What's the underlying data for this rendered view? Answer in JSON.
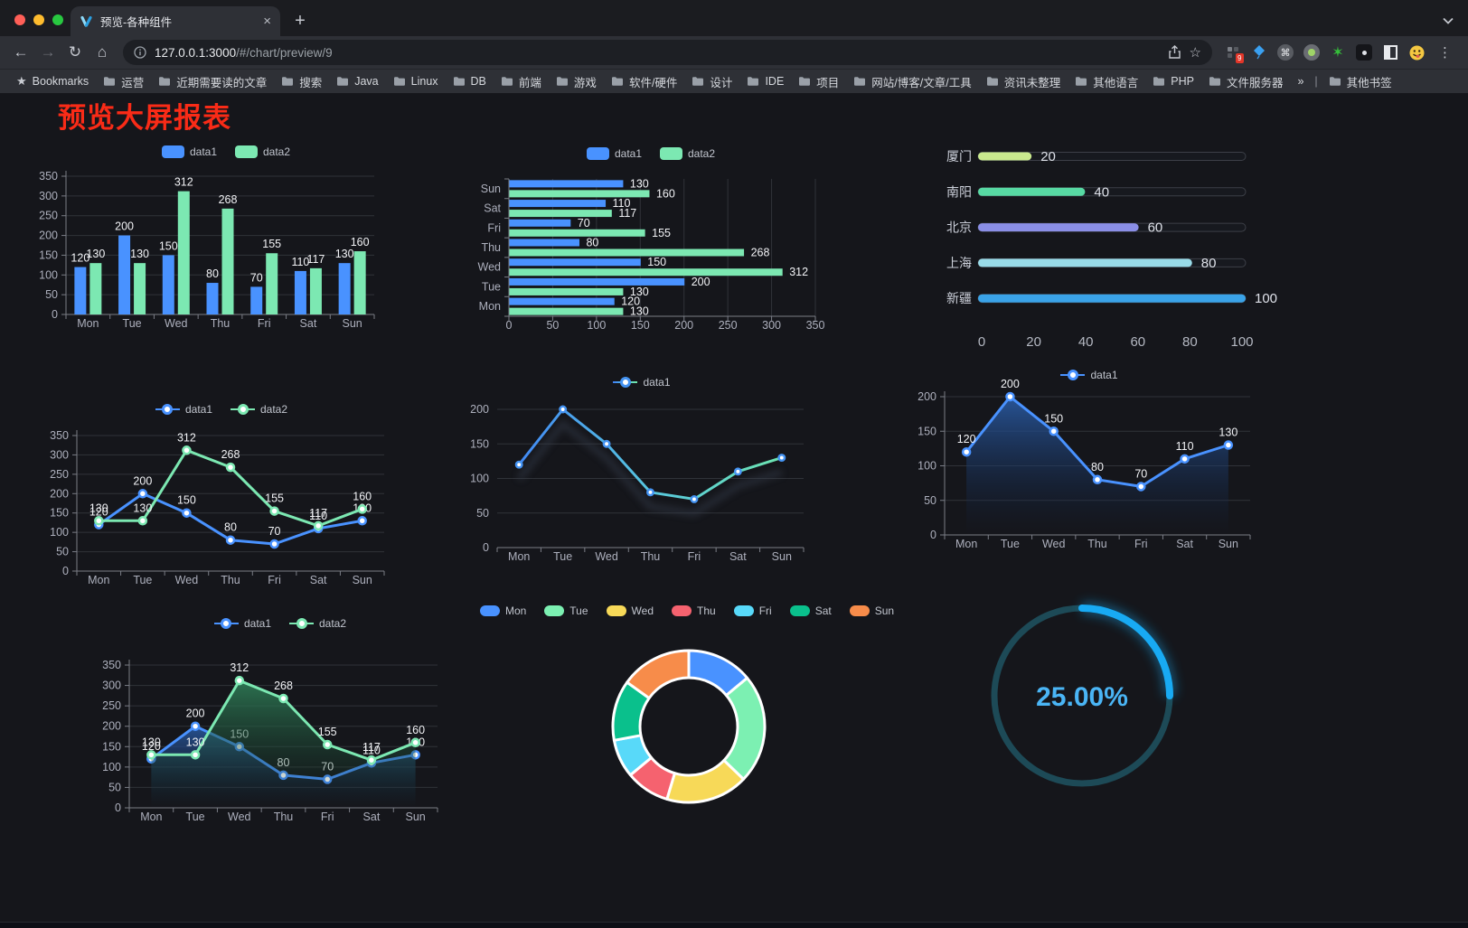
{
  "browser": {
    "traffic_lights": [
      "#ff5f57",
      "#febc2e",
      "#28c840"
    ],
    "tab_title": "预览-各种组件",
    "tab_close": "×",
    "new_tab_button": "+",
    "url_host": "127.0.0.1:3000",
    "url_path": "/#/chart/preview/9",
    "extension_badge": "9",
    "bookmarks_label": "Bookmarks",
    "bookmarks": [
      "运营",
      "近期需要读的文章",
      "搜索",
      "Java",
      "Linux",
      "DB",
      "前端",
      "游戏",
      "软件/硬件",
      "设计",
      "IDE",
      "项目",
      "网站/博客/文章/工具",
      "资讯未整理",
      "其他语言",
      "PHP",
      "文件服务器"
    ],
    "bookmarks_overflow": "»",
    "other_bookmarks": "其他书签"
  },
  "page": {
    "title": "预览大屏报表",
    "title_color": "#f92b17"
  },
  "chart_data": [
    {
      "id": "grouped-bar",
      "type": "bar",
      "categories": [
        "Mon",
        "Tue",
        "Wed",
        "Thu",
        "Fri",
        "Sat",
        "Sun"
      ],
      "series": [
        {
          "name": "data1",
          "color": "#4992ff",
          "values": [
            120,
            200,
            150,
            80,
            70,
            110,
            130
          ]
        },
        {
          "name": "data2",
          "color": "#7ce8b2",
          "values": [
            130,
            130,
            312,
            268,
            155,
            117,
            160
          ]
        }
      ],
      "ylim": [
        0,
        350
      ],
      "ystep": 50,
      "grid": true,
      "legend_position": "top"
    },
    {
      "id": "horizontal-bar",
      "type": "bar-horizontal",
      "categories": [
        "Mon",
        "Tue",
        "Wed",
        "Thu",
        "Fri",
        "Sat",
        "Sun"
      ],
      "series": [
        {
          "name": "data1",
          "color": "#4992ff",
          "values": [
            120,
            200,
            150,
            80,
            70,
            110,
            130
          ]
        },
        {
          "name": "data2",
          "color": "#7ce8b2",
          "values": [
            130,
            130,
            312,
            268,
            155,
            117,
            160
          ]
        }
      ],
      "xlim": [
        0,
        350
      ],
      "xstep": 50,
      "grid": true,
      "legend_position": "top"
    },
    {
      "id": "city-progress",
      "type": "bar-horizontal",
      "variant": "progress",
      "categories": [
        "厦门",
        "南阳",
        "北京",
        "上海",
        "新疆"
      ],
      "values": [
        20,
        40,
        60,
        80,
        100
      ],
      "colors": [
        "#c9e98e",
        "#57d9a3",
        "#8a8ee6",
        "#99dbe8",
        "#3aa3e8"
      ],
      "xlim": [
        0,
        100
      ],
      "xticks": [
        0,
        20,
        40,
        60,
        80,
        100
      ]
    },
    {
      "id": "dual-line",
      "type": "line",
      "categories": [
        "Mon",
        "Tue",
        "Wed",
        "Thu",
        "Fri",
        "Sat",
        "Sun"
      ],
      "series": [
        {
          "name": "data1",
          "color": "#4992ff",
          "values": [
            120,
            200,
            150,
            80,
            70,
            110,
            130
          ]
        },
        {
          "name": "data2",
          "color": "#7ce8b2",
          "values": [
            130,
            130,
            312,
            268,
            155,
            117,
            160
          ]
        }
      ],
      "ylim": [
        0,
        350
      ],
      "ystep": 50,
      "show_labels": true,
      "legend_position": "top"
    },
    {
      "id": "gradient-line",
      "type": "line",
      "categories": [
        "Mon",
        "Tue",
        "Wed",
        "Thu",
        "Fri",
        "Sat",
        "Sun"
      ],
      "series": [
        {
          "name": "data1",
          "color": "#4493f2",
          "gradient": [
            "#3e7ef7",
            "#57c7df",
            "#70e9a8"
          ],
          "values": [
            120,
            200,
            150,
            80,
            70,
            110,
            130
          ]
        }
      ],
      "ylim": [
        0,
        200
      ],
      "ystep": 50,
      "show_labels": false,
      "shadow": true,
      "legend_position": "top"
    },
    {
      "id": "area-line",
      "type": "area",
      "categories": [
        "Mon",
        "Tue",
        "Wed",
        "Thu",
        "Fri",
        "Sat",
        "Sun"
      ],
      "series": [
        {
          "name": "data1",
          "color": "#4992ff",
          "area": [
            "rgba(41,88,158,0.95)",
            "rgba(16,34,66,0)"
          ],
          "values": [
            120,
            200,
            150,
            80,
            70,
            110,
            130
          ]
        }
      ],
      "ylim": [
        0,
        200
      ],
      "ystep": 50,
      "show_labels": true,
      "legend_position": "top"
    },
    {
      "id": "dual-area",
      "type": "area",
      "categories": [
        "Mon",
        "Tue",
        "Wed",
        "Thu",
        "Fri",
        "Sat",
        "Sun"
      ],
      "series": [
        {
          "name": "data1",
          "color": "#4992ff",
          "area": [
            "rgba(41,88,158,0.9)",
            "rgba(16,34,66,0)"
          ],
          "values": [
            120,
            200,
            150,
            80,
            70,
            110,
            130
          ]
        },
        {
          "name": "data2",
          "color": "#7ce8b2",
          "area": [
            "rgba(47,125,87,0.9)",
            "rgba(18,48,34,0)"
          ],
          "values": [
            130,
            130,
            312,
            268,
            155,
            117,
            160
          ]
        }
      ],
      "ylim": [
        0,
        350
      ],
      "ystep": 50,
      "show_labels": true,
      "legend_position": "top"
    },
    {
      "id": "weekday-donut",
      "type": "pie",
      "categories": [
        "Mon",
        "Tue",
        "Wed",
        "Thu",
        "Fri",
        "Sat",
        "Sun"
      ],
      "values": [
        120,
        200,
        150,
        80,
        70,
        110,
        130
      ],
      "colors": [
        "#4992ff",
        "#7cf0b2",
        "#f7d958",
        "#f5626f",
        "#58d9f9",
        "#0ac08c",
        "#f78c4a"
      ],
      "legend_position": "top",
      "inner_radius_ratio": 0.64,
      "border_color": "#ffffff"
    },
    {
      "id": "percent-gauge",
      "type": "gauge",
      "value": 25,
      "max": 100,
      "label": "25.00%",
      "color": "#18aaf3",
      "track_color": "#1d4a57",
      "text_color": "#4ab5f5"
    }
  ]
}
